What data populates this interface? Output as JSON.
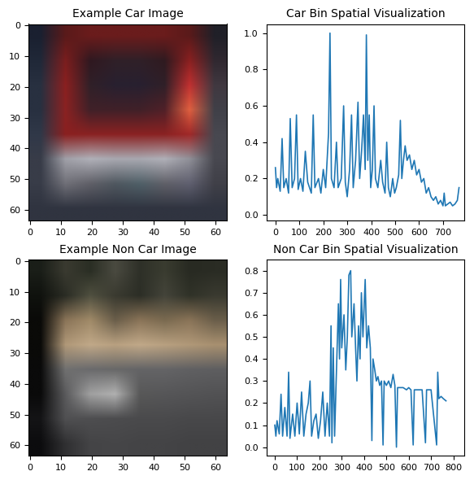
{
  "chart_data": [
    {
      "type": "image",
      "title": "Example Car Image",
      "xlim": [
        -0.5,
        63.5
      ],
      "ylim": [
        63.5,
        -0.5
      ],
      "xticks": [
        0,
        10,
        20,
        30,
        40,
        50,
        60
      ],
      "yticks": [
        0,
        10,
        20,
        30,
        40,
        50,
        60
      ],
      "pixels": [
        [
          "#1a2030",
          "#5a1a1a",
          "#6a1c1c",
          "#6a1c1c",
          "#6a1c1c",
          "#6a1c1c",
          "#5a1a1a",
          "#202028"
        ],
        [
          "#202838",
          "#7a1e1e",
          "#301820",
          "#302028",
          "#302028",
          "#301a20",
          "#8a2020",
          "#302830"
        ],
        [
          "#283040",
          "#8a2020",
          "#302028",
          "#282030",
          "#282030",
          "#302028",
          "#c03030",
          "#403840"
        ],
        [
          "#283040",
          "#8a2222",
          "#402028",
          "#402028",
          "#402028",
          "#502028",
          "#e06040",
          "#404048"
        ],
        [
          "#303848",
          "#8a2020",
          "#8a2222",
          "#8a2222",
          "#8a2222",
          "#8a2222",
          "#a02828",
          "#484850"
        ],
        [
          "#383c48",
          "#a0a0a8",
          "#b0b0b8",
          "#a8a8b0",
          "#a8a8b0",
          "#b0b0b8",
          "#909098",
          "#484850"
        ],
        [
          "#383c48",
          "#707078",
          "#606068",
          "#505860",
          "#506068",
          "#606068",
          "#606070",
          "#404048"
        ],
        [
          "#303440",
          "#303440",
          "#303440",
          "#303440",
          "#303440",
          "#303440",
          "#303440",
          "#303440"
        ]
      ]
    },
    {
      "type": "line",
      "title": "Car Bin Spatial Visualization",
      "color": "#1f77b4",
      "xlim": [
        -38,
        790
      ],
      "ylim": [
        -0.03,
        1.05
      ],
      "xticks": [
        0,
        100,
        200,
        300,
        400,
        500,
        600,
        700
      ],
      "yticks": [
        0.0,
        0.2,
        0.4,
        0.6,
        0.8,
        1.0
      ],
      "x": [
        0,
        5,
        10,
        20,
        28,
        35,
        45,
        55,
        62,
        70,
        80,
        88,
        95,
        105,
        115,
        125,
        135,
        150,
        158,
        165,
        180,
        190,
        200,
        210,
        222,
        228,
        234,
        245,
        255,
        262,
        275,
        285,
        292,
        300,
        310,
        318,
        325,
        335,
        345,
        352,
        360,
        368,
        375,
        380,
        386,
        392,
        398,
        405,
        412,
        418,
        428,
        440,
        448,
        458,
        465,
        472,
        480,
        490,
        498,
        505,
        515,
        522,
        528,
        535,
        542,
        550,
        560,
        570,
        580,
        590,
        600,
        610,
        620,
        630,
        640,
        650,
        660,
        670,
        680,
        690,
        700,
        705,
        710,
        720,
        730,
        740,
        750,
        760,
        767
      ],
      "values": [
        0.26,
        0.15,
        0.2,
        0.13,
        0.42,
        0.15,
        0.2,
        0.12,
        0.53,
        0.15,
        0.2,
        0.55,
        0.14,
        0.2,
        0.13,
        0.35,
        0.18,
        0.12,
        0.55,
        0.15,
        0.2,
        0.12,
        0.25,
        0.15,
        0.45,
        1.0,
        0.2,
        0.15,
        0.4,
        0.15,
        0.2,
        0.6,
        0.18,
        0.1,
        0.25,
        0.55,
        0.15,
        0.3,
        0.62,
        0.2,
        0.35,
        0.55,
        0.25,
        0.99,
        0.3,
        0.55,
        0.15,
        0.25,
        0.6,
        0.2,
        0.15,
        0.3,
        0.18,
        0.12,
        0.4,
        0.15,
        0.1,
        0.2,
        0.12,
        0.15,
        0.22,
        0.52,
        0.2,
        0.3,
        0.38,
        0.3,
        0.33,
        0.25,
        0.3,
        0.22,
        0.25,
        0.18,
        0.2,
        0.12,
        0.15,
        0.1,
        0.08,
        0.1,
        0.06,
        0.08,
        0.05,
        0.12,
        0.05,
        0.06,
        0.07,
        0.05,
        0.06,
        0.08,
        0.15
      ]
    },
    {
      "type": "image",
      "title": "Example Non Car Image",
      "xlim": [
        -0.5,
        63.5
      ],
      "ylim": [
        63.5,
        -0.5
      ],
      "xticks": [
        0,
        10,
        20,
        30,
        40,
        50,
        60
      ],
      "yticks": [
        0,
        10,
        20,
        30,
        40,
        50,
        60
      ],
      "pixels": [
        [
          "#1a1e18",
          "#3a3a30",
          "#2a2e24",
          "#4a4a40",
          "#2e3028",
          "#3a3c30",
          "#282a22",
          "#2a2c24"
        ],
        [
          "#10120e",
          "#2a2c24",
          "#505040",
          "#3a3a30",
          "#2c2e26",
          "#44443a",
          "#303228",
          "#3a3a30"
        ],
        [
          "#0a0a08",
          "#8a7458",
          "#a08a68",
          "#6a5e4a",
          "#8a7458",
          "#7a6a50",
          "#8a7458",
          "#6a5e4a"
        ],
        [
          "#0a0a08",
          "#b09878",
          "#c0a888",
          "#b8a080",
          "#c0a888",
          "#b8a080",
          "#b09878",
          "#a89070"
        ],
        [
          "#0a0a0a",
          "#707070",
          "#6a6a6c",
          "#686868",
          "#646466",
          "#646466",
          "#606062",
          "#5e5e60"
        ],
        [
          "#0a0a0a",
          "#5a5a5c",
          "#a0a0a0",
          "#b0b0b0",
          "#585858",
          "#565658",
          "#545456",
          "#525254"
        ],
        [
          "#141416",
          "#505052",
          "#4e4e50",
          "#4c4c4e",
          "#4a4a4c",
          "#4a4a4c",
          "#48484a",
          "#48484a"
        ],
        [
          "#0c0c0e",
          "#303032",
          "#444446",
          "#464648",
          "#444446",
          "#444446",
          "#424244",
          "#424244"
        ]
      ]
    },
    {
      "type": "line",
      "title": "Non Car Bin Spatial Visualization",
      "color": "#1f77b4",
      "xlim": [
        -38,
        850
      ],
      "ylim": [
        -0.04,
        0.85
      ],
      "xticks": [
        0,
        100,
        200,
        300,
        400,
        500,
        600,
        700,
        800
      ],
      "yticks": [
        0.0,
        0.1,
        0.2,
        0.3,
        0.4,
        0.5,
        0.6,
        0.7,
        0.8
      ],
      "x": [
        0,
        5,
        10,
        20,
        28,
        35,
        45,
        55,
        62,
        68,
        80,
        90,
        100,
        110,
        120,
        130,
        140,
        150,
        158,
        165,
        175,
        185,
        195,
        205,
        215,
        225,
        235,
        245,
        252,
        256,
        262,
        268,
        275,
        285,
        290,
        295,
        300,
        310,
        318,
        325,
        332,
        340,
        345,
        355,
        362,
        368,
        375,
        382,
        388,
        395,
        405,
        412,
        420,
        428,
        435,
        440,
        448,
        455,
        462,
        470,
        478,
        485,
        490,
        500,
        510,
        520,
        530,
        538,
        545,
        550,
        560,
        575,
        590,
        600,
        610,
        620,
        625,
        640,
        660,
        675,
        680,
        700,
        725,
        730,
        735,
        745,
        755,
        767
      ],
      "values": [
        0.1,
        0.05,
        0.12,
        0.06,
        0.24,
        0.05,
        0.18,
        0.05,
        0.34,
        0.04,
        0.15,
        0.05,
        0.2,
        0.06,
        0.25,
        0.05,
        0.15,
        0.2,
        0.3,
        0.05,
        0.12,
        0.15,
        0.04,
        0.12,
        0.25,
        0.05,
        0.2,
        0.05,
        0.55,
        0.02,
        0.45,
        0.05,
        0.3,
        0.65,
        0.4,
        0.76,
        0.45,
        0.6,
        0.35,
        0.5,
        0.78,
        0.8,
        0.5,
        0.65,
        0.45,
        0.3,
        0.55,
        0.4,
        0.7,
        0.5,
        0.76,
        0.45,
        0.55,
        0.45,
        0.03,
        0.4,
        0.35,
        0.3,
        0.32,
        0.28,
        0.3,
        0.01,
        0.3,
        0.28,
        0.3,
        0.27,
        0.33,
        0.28,
        0.0,
        0.27,
        0.27,
        0.27,
        0.26,
        0.27,
        0.26,
        0.01,
        0.26,
        0.26,
        0.26,
        0.02,
        0.26,
        0.26,
        0.01,
        0.34,
        0.22,
        0.23,
        0.22,
        0.21
      ]
    }
  ]
}
